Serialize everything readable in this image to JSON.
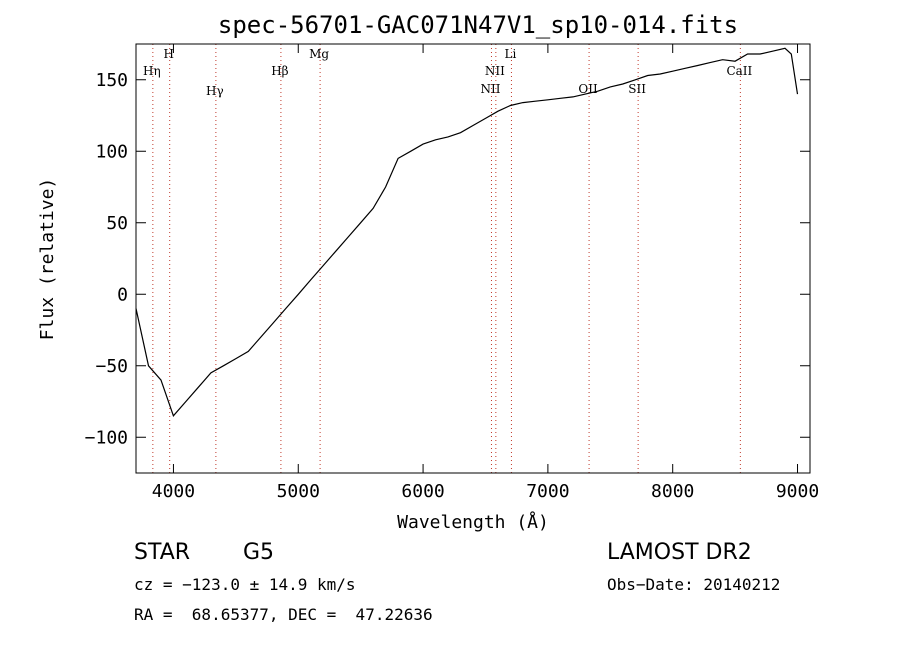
{
  "chart_data": {
    "type": "line",
    "title": "spec-56701-GAC071N47V1_sp10-014.fits",
    "xlabel": "Wavelength (Å)",
    "ylabel": "Flux (relative)",
    "xlim": [
      3700,
      9100
    ],
    "ylim": [
      -125,
      175
    ],
    "x_ticks": [
      4000,
      5000,
      6000,
      7000,
      8000,
      9000
    ],
    "y_ticks": [
      -100,
      -50,
      0,
      50,
      100,
      150
    ],
    "grid": false,
    "series": [
      {
        "x": [
          3700,
          3800,
          3900,
          4000,
          4100,
          4200,
          4300,
          4400,
          4500,
          4600,
          4700,
          4800,
          4900,
          5000,
          5100,
          5200,
          5300,
          5400,
          5500,
          5600,
          5700,
          5800,
          5900,
          6000,
          6100,
          6200,
          6300,
          6400,
          6500,
          6600,
          6700,
          6800,
          6900,
          7000,
          7100,
          7200,
          7300,
          7400,
          7500,
          7600,
          7700,
          7800,
          7900,
          8000,
          8100,
          8200,
          8300,
          8400,
          8500,
          8600,
          8700,
          8800,
          8900,
          8950,
          9000
        ],
        "y": [
          -10,
          -50,
          -60,
          -85,
          -75,
          -65,
          -55,
          -50,
          -45,
          -40,
          -30,
          -20,
          -10,
          0,
          10,
          20,
          30,
          40,
          50,
          60,
          75,
          95,
          100,
          105,
          108,
          110,
          113,
          118,
          123,
          128,
          132,
          134,
          135,
          136,
          137,
          138,
          140,
          142,
          145,
          147,
          150,
          153,
          154,
          156,
          158,
          160,
          162,
          164,
          163,
          168,
          168,
          170,
          172,
          168,
          140
        ]
      }
    ],
    "line_markers": [
      {
        "label": "Hη",
        "x": 3835
      },
      {
        "label": "H",
        "x": 3970
      },
      {
        "label": "Hγ",
        "x": 4340
      },
      {
        "label": "Hβ",
        "x": 4861
      },
      {
        "label": "Mg",
        "x": 5175
      },
      {
        "label": "NII",
        "x": 6548
      },
      {
        "label": "NII",
        "x": 6583
      },
      {
        "label": "Li",
        "x": 6708
      },
      {
        "label": "OII",
        "x": 7330
      },
      {
        "label": "SII",
        "x": 7723
      },
      {
        "label": "CaII",
        "x": 8542
      }
    ]
  },
  "info": {
    "object_type": "STAR",
    "spectral_class": "G5",
    "survey": "LAMOST DR2",
    "cz": "cz = −123.0 ± 14.9 km/s",
    "obs_date": "Obs−Date: 20140212",
    "coords": "RA =  68.65377, DEC =  47.22636"
  }
}
